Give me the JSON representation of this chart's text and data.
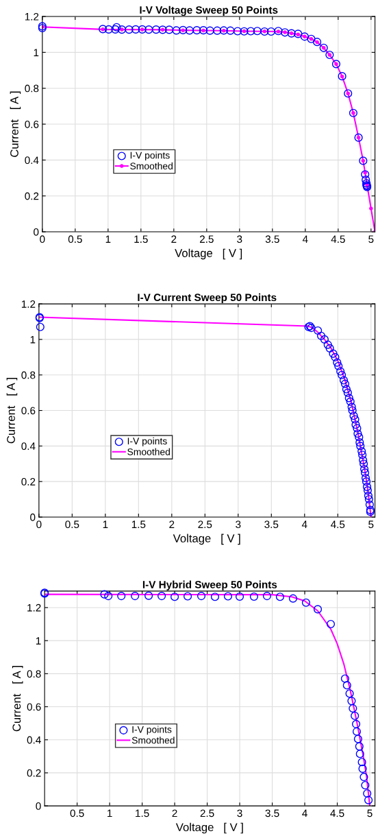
{
  "chart_data": [
    {
      "type": "scatter",
      "title": "I-V Voltage Sweep 50 Points",
      "xlabel": "Voltage   [ V ]",
      "ylabel": "Current   [ A ]",
      "xlim": [
        0,
        5.06
      ],
      "ylim": [
        0,
        1.2
      ],
      "xticks": [
        0,
        0.5,
        1,
        1.5,
        2,
        2.5,
        3,
        3.5,
        4,
        4.5,
        5
      ],
      "yticks": [
        0,
        0.2,
        0.4,
        0.6,
        0.8,
        1,
        1.2
      ],
      "grid": true,
      "legend": "bottom left",
      "series": [
        {
          "name": "I-V points",
          "marker": "circle",
          "color": "#0000ff",
          "x": [
            0,
            0,
            0.92,
            1.01,
            1.11,
            1.13,
            1.21,
            1.32,
            1.42,
            1.52,
            1.62,
            1.73,
            1.83,
            1.93,
            2.04,
            2.14,
            2.24,
            2.35,
            2.45,
            2.55,
            2.66,
            2.76,
            2.86,
            2.97,
            3.07,
            3.17,
            3.27,
            3.38,
            3.48,
            3.59,
            3.69,
            3.79,
            3.89,
            3.99,
            4.09,
            4.18,
            4.28,
            4.37,
            4.47,
            4.56,
            4.65,
            4.73,
            4.81,
            4.88,
            4.91,
            4.92,
            4.93,
            4.93,
            4.94,
            4.94
          ],
          "values": [
            1.145,
            1.135,
            1.13,
            1.128,
            1.128,
            1.14,
            1.127,
            1.127,
            1.128,
            1.128,
            1.127,
            1.127,
            1.126,
            1.126,
            1.122,
            1.124,
            1.122,
            1.123,
            1.123,
            1.121,
            1.121,
            1.122,
            1.121,
            1.118,
            1.117,
            1.118,
            1.119,
            1.116,
            1.116,
            1.119,
            1.111,
            1.106,
            1.103,
            1.088,
            1.075,
            1.058,
            1.025,
            0.986,
            0.935,
            0.867,
            0.771,
            0.662,
            0.525,
            0.396,
            0.32,
            0.29,
            0.27,
            0.26,
            0.25,
            0.255
          ]
        },
        {
          "name": "Smoothed",
          "type": "line",
          "marker": "circle",
          "color": "#ff00ff",
          "x": [
            0,
            0.92,
            1.21,
            1.52,
            1.83,
            2.14,
            2.45,
            2.76,
            3.07,
            3.38,
            3.59,
            3.69,
            3.79,
            3.89,
            3.99,
            4.09,
            4.18,
            4.28,
            4.37,
            4.47,
            4.56,
            4.65,
            4.73,
            4.81,
            4.88,
            4.91,
            4.94,
            5.0,
            5.06
          ],
          "values": [
            1.142,
            1.128,
            1.127,
            1.127,
            1.126,
            1.123,
            1.122,
            1.121,
            1.118,
            1.117,
            1.116,
            1.112,
            1.106,
            1.1,
            1.088,
            1.075,
            1.057,
            1.025,
            0.986,
            0.935,
            0.866,
            0.771,
            0.662,
            0.525,
            0.396,
            0.33,
            0.26,
            0.13,
            0
          ]
        }
      ]
    },
    {
      "type": "scatter",
      "title": "I-V Current Sweep 50 Points",
      "xlabel": "Voltage   [ V ]",
      "ylabel": "Current   [ A ]",
      "xlim": [
        0,
        5.06
      ],
      "ylim": [
        0,
        1.2
      ],
      "xticks": [
        0,
        0.5,
        1,
        1.5,
        2,
        2.5,
        3,
        3.5,
        4,
        4.5,
        5
      ],
      "yticks": [
        0,
        0.2,
        0.4,
        0.6,
        0.8,
        1,
        1.2
      ],
      "grid": true,
      "legend": "bottom left",
      "series": [
        {
          "name": "I-V points",
          "marker": "circle",
          "color": "#0000ff",
          "x": [
            0.01,
            0.01,
            0.02,
            4.06,
            4.08,
            4.1,
            4.2,
            4.25,
            4.3,
            4.35,
            4.38,
            4.43,
            4.46,
            4.49,
            4.51,
            4.54,
            4.56,
            4.59,
            4.61,
            4.63,
            4.65,
            4.67,
            4.69,
            4.71,
            4.72,
            4.74,
            4.76,
            4.77,
            4.79,
            4.8,
            4.82,
            4.83,
            4.84,
            4.86,
            4.87,
            4.88,
            4.89,
            4.9,
            4.91,
            4.92,
            4.93,
            4.94,
            4.95,
            4.96,
            4.97,
            4.98,
            4.99,
            4.99
          ],
          "values": [
            1.12,
            1.125,
            1.07,
            1.07,
            1.075,
            1.065,
            1.05,
            1.02,
            1.0,
            0.97,
            0.95,
            0.92,
            0.9,
            0.87,
            0.85,
            0.82,
            0.8,
            0.77,
            0.75,
            0.72,
            0.7,
            0.67,
            0.65,
            0.62,
            0.6,
            0.57,
            0.55,
            0.52,
            0.5,
            0.47,
            0.45,
            0.42,
            0.4,
            0.37,
            0.35,
            0.32,
            0.3,
            0.27,
            0.25,
            0.22,
            0.2,
            0.17,
            0.15,
            0.12,
            0.1,
            0.07,
            0.04,
            0.03
          ]
        },
        {
          "name": "Smoothed",
          "type": "line",
          "marker": "none",
          "color": "#ff00ff",
          "x": [
            0.01,
            4.05,
            4.12,
            4.2,
            4.3,
            4.4,
            4.5,
            4.6,
            4.7,
            4.8,
            4.9,
            4.95,
            5.0
          ],
          "values": [
            1.125,
            1.075,
            1.065,
            1.04,
            1.0,
            0.95,
            0.88,
            0.78,
            0.65,
            0.48,
            0.28,
            0.16,
            0.0
          ]
        }
      ]
    },
    {
      "type": "scatter",
      "title": "I-V Hybrid Sweep 50 Points",
      "xlabel": "Voltage   [ V ]",
      "ylabel": "Current   [ A ]",
      "xlim": [
        0,
        5.08
      ],
      "ylim": [
        0,
        1.3
      ],
      "xticks": [
        0.5,
        1,
        1.5,
        2,
        2.5,
        3,
        3.5,
        4,
        4.5,
        5
      ],
      "yticks": [
        0,
        0.2,
        0.4,
        0.6,
        0.8,
        1,
        1.2
      ],
      "grid": true,
      "legend": "bottom left",
      "series": [
        {
          "name": "I-V points",
          "marker": "circle",
          "color": "#0000ff",
          "x": [
            0.0,
            0.0,
            0.92,
            0.98,
            1.18,
            1.39,
            1.6,
            1.8,
            2.0,
            2.2,
            2.41,
            2.62,
            2.82,
            3.0,
            3.22,
            3.42,
            3.62,
            3.82,
            4.02,
            4.2,
            4.4,
            4.62,
            4.65,
            4.69,
            4.72,
            4.74,
            4.77,
            4.79,
            4.8,
            4.82,
            4.84,
            4.85,
            4.88,
            4.89,
            4.91,
            4.93,
            4.96,
            4.98
          ],
          "values": [
            1.29,
            1.285,
            1.28,
            1.27,
            1.27,
            1.27,
            1.272,
            1.27,
            1.265,
            1.268,
            1.27,
            1.265,
            1.268,
            1.266,
            1.266,
            1.27,
            1.265,
            1.255,
            1.23,
            1.19,
            1.1,
            0.77,
            0.73,
            0.68,
            0.635,
            0.59,
            0.545,
            0.495,
            0.45,
            0.405,
            0.36,
            0.315,
            0.265,
            0.225,
            0.175,
            0.125,
            0.075,
            0.035
          ]
        },
        {
          "name": "Smoothed",
          "type": "line",
          "marker": "none",
          "color": "#ff00ff",
          "x": [
            0.0,
            3.5,
            3.8,
            4.0,
            4.2,
            4.4,
            4.5,
            4.6,
            4.65,
            4.7,
            4.8,
            4.9,
            4.95,
            5.0
          ],
          "values": [
            1.28,
            1.278,
            1.265,
            1.24,
            1.18,
            1.07,
            0.98,
            0.86,
            0.78,
            0.7,
            0.51,
            0.3,
            0.18,
            0.0
          ]
        }
      ]
    }
  ]
}
